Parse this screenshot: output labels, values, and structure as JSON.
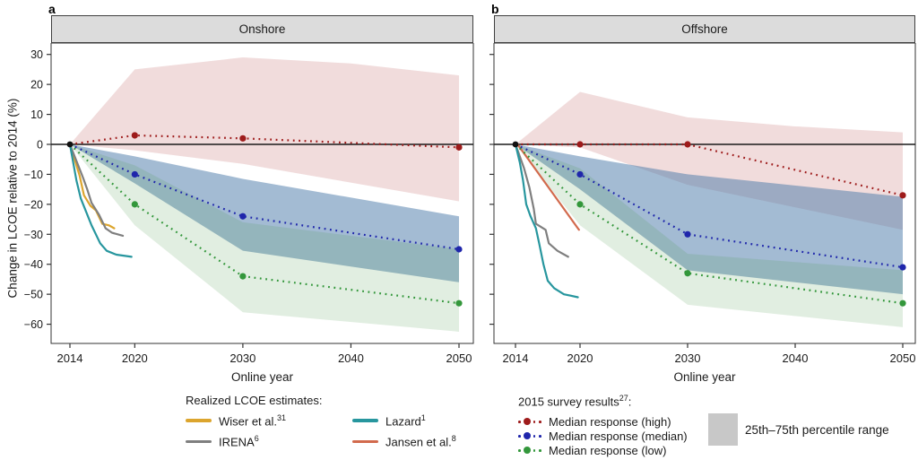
{
  "figure": {
    "panel_a_letter": "a",
    "panel_b_letter": "b",
    "ylabel": "Change in LCOE relative to 2014 (%)",
    "xlabel": "Online year"
  },
  "legend": {
    "realized_title": "Realized LCOE estimates:",
    "realized_items": [
      {
        "label": "Wiser et al.",
        "sup": "31",
        "color": "#dca52e"
      },
      {
        "label": "Lazard",
        "sup": "1",
        "color": "#27969e"
      },
      {
        "label": "IRENA",
        "sup": "6",
        "color": "#7f7f7f"
      },
      {
        "label": "Jansen et al.",
        "sup": "8",
        "color": "#d26a4d"
      }
    ],
    "survey_title_prefix": "2015 survey results",
    "survey_title_sup": "27",
    "survey_title_suffix": ":",
    "survey_items": [
      {
        "label": "Median response (high)",
        "color": "#9e1b1b"
      },
      {
        "label": "Median response (median)",
        "color": "#1f26ab"
      },
      {
        "label": "Median response (low)",
        "color": "#33973b"
      }
    ],
    "range_label": "25th–75th percentile range",
    "range_color": "#c8c8c8"
  },
  "chart_data": [
    {
      "type": "line",
      "title": "Onshore",
      "xlabel": "Online year",
      "ylabel": "Change in LCOE relative to 2014 (%)",
      "x_ticks": [
        2014,
        2020,
        2030,
        2040,
        2050
      ],
      "y_ticks": [
        30,
        20,
        10,
        0,
        -10,
        -20,
        -30,
        -40,
        -50,
        -60
      ],
      "ylim": [
        -66,
        34
      ],
      "origin_point": {
        "x": 2014,
        "y": 0,
        "color": "#111111"
      },
      "survey_series": [
        {
          "name": "Median response (high)",
          "color": "#9e1b1b",
          "band_fill": "rgba(192,96,96,0.22)",
          "x": [
            2014,
            2020,
            2030,
            2050
          ],
          "y": [
            0,
            3,
            2,
            -1
          ],
          "band_upper": [
            [
              2014,
              0
            ],
            [
              2020,
              25
            ],
            [
              2030,
              29
            ],
            [
              2040,
              27
            ],
            [
              2050,
              23
            ]
          ],
          "band_lower": [
            [
              2014,
              0
            ],
            [
              2020,
              -2
            ],
            [
              2030,
              -6.5
            ],
            [
              2050,
              -19
            ]
          ]
        },
        {
          "name": "Median response (median)",
          "color": "#1f26ab",
          "band_fill": "rgba(72,120,168,0.5)",
          "x": [
            2014,
            2020,
            2030,
            2050
          ],
          "y": [
            0,
            -10,
            -24,
            -35
          ],
          "band_upper": [
            [
              2014,
              0
            ],
            [
              2020,
              -4
            ],
            [
              2030,
              -11.5
            ],
            [
              2050,
              -24
            ]
          ],
          "band_lower": [
            [
              2014,
              0
            ],
            [
              2020,
              -13
            ],
            [
              2030,
              -35.5
            ],
            [
              2050,
              -46
            ]
          ]
        },
        {
          "name": "Median response (low)",
          "color": "#33973b",
          "band_fill": "rgba(78,154,78,0.17)",
          "x": [
            2014,
            2020,
            2030,
            2050
          ],
          "y": [
            0,
            -20,
            -44,
            -53
          ],
          "band_upper": [
            [
              2014,
              0
            ],
            [
              2020,
              -7
            ],
            [
              2030,
              -26
            ],
            [
              2050,
              -35
            ]
          ],
          "band_lower": [
            [
              2014,
              0
            ],
            [
              2020,
              -27
            ],
            [
              2030,
              -56
            ],
            [
              2050,
              -62.5
            ]
          ]
        }
      ],
      "realized_series": [
        {
          "name": "Wiser et al.",
          "color": "#dca52e",
          "points": [
            [
              2014,
              0
            ],
            [
              2014.9,
              -10.5
            ],
            [
              2015.3,
              -17
            ],
            [
              2015.9,
              -20.5
            ],
            [
              2016.4,
              -22
            ],
            [
              2017,
              -26.5
            ],
            [
              2017.6,
              -27
            ],
            [
              2018.1,
              -28
            ]
          ]
        },
        {
          "name": "IRENA",
          "color": "#7f7f7f",
          "points": [
            [
              2014,
              0
            ],
            [
              2015.2,
              -11
            ],
            [
              2015.6,
              -15
            ],
            [
              2016,
              -19.5
            ],
            [
              2016.7,
              -23.5
            ],
            [
              2017.3,
              -28
            ],
            [
              2017.9,
              -29.5
            ],
            [
              2018.9,
              -30.5
            ]
          ]
        },
        {
          "name": "Lazard",
          "color": "#27969e",
          "points": [
            [
              2014,
              0
            ],
            [
              2014.6,
              -12
            ],
            [
              2015,
              -18
            ],
            [
              2015.5,
              -22.5
            ],
            [
              2016,
              -27
            ],
            [
              2016.8,
              -33
            ],
            [
              2017.4,
              -35.5
            ],
            [
              2018.3,
              -36.8
            ],
            [
              2019.7,
              -37.5
            ]
          ]
        }
      ]
    },
    {
      "type": "line",
      "title": "Offshore",
      "xlabel": "Online year",
      "ylabel": "Change in LCOE relative to 2014 (%)",
      "x_ticks": [
        2014,
        2020,
        2030,
        2040,
        2050
      ],
      "y_ticks": [
        30,
        20,
        10,
        0,
        -10,
        -20,
        -30,
        -40,
        -50,
        -60
      ],
      "ylim": [
        -66,
        34
      ],
      "origin_point": {
        "x": 2014,
        "y": 0,
        "color": "#111111"
      },
      "survey_series": [
        {
          "name": "Median response (high)",
          "color": "#9e1b1b",
          "band_fill": "rgba(192,96,96,0.22)",
          "x": [
            2014,
            2020,
            2030,
            2050
          ],
          "y": [
            0,
            0,
            0,
            -17
          ],
          "band_upper": [
            [
              2014,
              0
            ],
            [
              2020,
              17.5
            ],
            [
              2030,
              9
            ],
            [
              2040,
              6
            ],
            [
              2050,
              4
            ]
          ],
          "band_lower": [
            [
              2014,
              0
            ],
            [
              2020,
              -1
            ],
            [
              2030,
              -13.5
            ],
            [
              2050,
              -28.5
            ]
          ]
        },
        {
          "name": "Median response (median)",
          "color": "#1f26ab",
          "band_fill": "rgba(72,120,168,0.5)",
          "x": [
            2014,
            2020,
            2030,
            2050
          ],
          "y": [
            0,
            -10,
            -30,
            -41
          ],
          "band_upper": [
            [
              2014,
              0
            ],
            [
              2020,
              -4
            ],
            [
              2030,
              -10
            ],
            [
              2050,
              -17.5
            ]
          ],
          "band_lower": [
            [
              2014,
              0
            ],
            [
              2020,
              -15
            ],
            [
              2030,
              -42
            ],
            [
              2050,
              -50
            ]
          ]
        },
        {
          "name": "Median response (low)",
          "color": "#33973b",
          "band_fill": "rgba(78,154,78,0.17)",
          "x": [
            2014,
            2020,
            2030,
            2050
          ],
          "y": [
            0,
            -20,
            -43,
            -53
          ],
          "band_upper": [
            [
              2014,
              0
            ],
            [
              2020,
              -8
            ],
            [
              2030,
              -36.5
            ],
            [
              2050,
              -42
            ]
          ],
          "band_lower": [
            [
              2014,
              0
            ],
            [
              2020,
              -27
            ],
            [
              2030,
              -53.5
            ],
            [
              2050,
              -61
            ]
          ]
        }
      ],
      "realized_series": [
        {
          "name": "IRENA",
          "color": "#7f7f7f",
          "points": [
            [
              2014,
              0
            ],
            [
              2014.8,
              -8
            ],
            [
              2015.3,
              -14.5
            ],
            [
              2015.7,
              -21.5
            ],
            [
              2015.9,
              -26.5
            ],
            [
              2016.8,
              -28.5
            ],
            [
              2017.1,
              -33
            ],
            [
              2017.9,
              -35.5
            ],
            [
              2018.9,
              -37.5
            ]
          ]
        },
        {
          "name": "Lazard",
          "color": "#27969e",
          "points": [
            [
              2014,
              0
            ],
            [
              2014.4,
              -6
            ],
            [
              2014.7,
              -12
            ],
            [
              2015,
              -20
            ],
            [
              2015.4,
              -24
            ],
            [
              2015.9,
              -28
            ],
            [
              2016.2,
              -33
            ],
            [
              2016.6,
              -40
            ],
            [
              2017,
              -45.5
            ],
            [
              2017.6,
              -48
            ],
            [
              2018.5,
              -50
            ],
            [
              2019.8,
              -51
            ]
          ]
        },
        {
          "name": "Jansen et al.",
          "color": "#d26a4d",
          "points": [
            [
              2014.2,
              0
            ],
            [
              2016,
              -9
            ],
            [
              2018,
              -19
            ],
            [
              2019.9,
              -28.5
            ]
          ]
        }
      ]
    }
  ]
}
